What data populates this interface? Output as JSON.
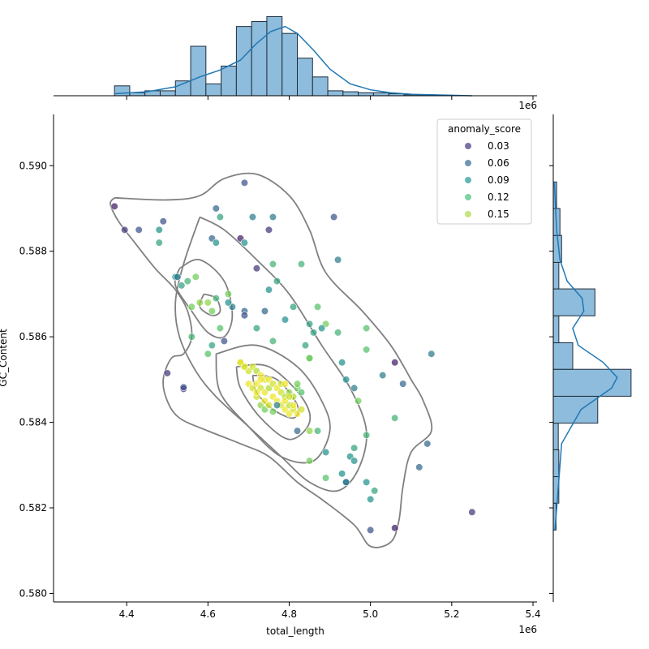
{
  "chart_data": {
    "type": "scatter",
    "xlabel": "total_length",
    "ylabel": "GC_Content",
    "x_scale_label": "1e6",
    "x_ticks": [
      4.4,
      4.6,
      4.8,
      5.0,
      5.2,
      5.4
    ],
    "y_ticks": [
      0.58,
      0.582,
      0.584,
      0.586,
      0.588,
      0.59
    ],
    "xlim": [
      4.22,
      5.41
    ],
    "ylim": [
      0.5798,
      0.5912
    ],
    "legend": {
      "title": "anomaly_score",
      "placement": "top-right",
      "entries": [
        {
          "label": "0.03",
          "color": "#5a4c8e"
        },
        {
          "label": "0.06",
          "color": "#4a7aa0"
        },
        {
          "label": "0.09",
          "color": "#3aa5a0"
        },
        {
          "label": "0.12",
          "color": "#5cc88a"
        },
        {
          "label": "0.15",
          "color": "#b5e05c"
        }
      ]
    },
    "colors": {
      "hist_fill": "#8ebcdc",
      "hist_edge": "#1f2d3d",
      "kde_line": "#1f77b4",
      "contour": "#808080"
    },
    "points": [
      [
        4.37,
        0.58905,
        0.03
      ],
      [
        4.395,
        0.5885,
        0.04
      ],
      [
        4.43,
        0.5885,
        0.05
      ],
      [
        4.49,
        0.5887,
        0.05
      ],
      [
        4.48,
        0.5885,
        0.08
      ],
      [
        4.48,
        0.5882,
        0.09
      ],
      [
        4.52,
        0.5874,
        0.08
      ],
      [
        4.525,
        0.5874,
        0.07
      ],
      [
        4.535,
        0.5872,
        0.09
      ],
      [
        4.55,
        0.5873,
        0.1
      ],
      [
        4.57,
        0.5874,
        0.12
      ],
      [
        4.58,
        0.5868,
        0.13
      ],
      [
        4.56,
        0.5867,
        0.12
      ],
      [
        4.6,
        0.5868,
        0.13
      ],
      [
        4.61,
        0.5866,
        0.12
      ],
      [
        4.62,
        0.5869,
        0.1
      ],
      [
        4.63,
        0.5862,
        0.11
      ],
      [
        4.64,
        0.5859,
        0.05
      ],
      [
        4.6,
        0.5856,
        0.11
      ],
      [
        4.56,
        0.586,
        0.1
      ],
      [
        4.61,
        0.5858,
        0.09
      ],
      [
        4.5,
        0.58515,
        0.04
      ],
      [
        4.54,
        0.58478,
        0.04
      ],
      [
        4.54,
        0.58482,
        0.05
      ],
      [
        4.62,
        0.589,
        0.06
      ],
      [
        4.61,
        0.5883,
        0.06
      ],
      [
        4.62,
        0.5882,
        0.08
      ],
      [
        4.63,
        0.5888,
        0.09
      ],
      [
        4.68,
        0.5883,
        0.03
      ],
      [
        4.69,
        0.5882,
        0.08
      ],
      [
        4.69,
        0.5896,
        0.05
      ],
      [
        4.71,
        0.5888,
        0.07
      ],
      [
        4.76,
        0.5888,
        0.07
      ],
      [
        4.75,
        0.5885,
        0.04
      ],
      [
        4.72,
        0.5876,
        0.04
      ],
      [
        4.76,
        0.5877,
        0.1
      ],
      [
        4.77,
        0.5873,
        0.09
      ],
      [
        4.75,
        0.5871,
        0.08
      ],
      [
        4.83,
        0.5877,
        0.1
      ],
      [
        4.91,
        0.5888,
        0.05
      ],
      [
        4.92,
        0.5878,
        0.07
      ],
      [
        4.65,
        0.587,
        0.12
      ],
      [
        4.66,
        0.5867,
        0.07
      ],
      [
        4.65,
        0.5868,
        0.08
      ],
      [
        4.69,
        0.5866,
        0.06
      ],
      [
        4.69,
        0.5865,
        0.05
      ],
      [
        4.74,
        0.5866,
        0.06
      ],
      [
        4.72,
        0.5862,
        0.09
      ],
      [
        4.79,
        0.5864,
        0.08
      ],
      [
        4.81,
        0.5867,
        0.09
      ],
      [
        4.85,
        0.5863,
        0.09
      ],
      [
        4.87,
        0.5867,
        0.11
      ],
      [
        4.89,
        0.5863,
        0.12
      ],
      [
        4.84,
        0.5858,
        0.09
      ],
      [
        4.86,
        0.5861,
        0.09
      ],
      [
        4.88,
        0.5862,
        0.08
      ],
      [
        4.92,
        0.5861,
        0.1
      ],
      [
        4.99,
        0.5862,
        0.11
      ],
      [
        4.99,
        0.5857,
        0.11
      ],
      [
        4.85,
        0.5855,
        0.11
      ],
      [
        4.85,
        0.5855,
        0.12
      ],
      [
        4.76,
        0.5859,
        0.1
      ],
      [
        5.06,
        0.5854,
        0.03
      ],
      [
        5.15,
        0.5856,
        0.07
      ],
      [
        5.03,
        0.5851,
        0.07
      ],
      [
        5.08,
        0.5849,
        0.06
      ],
      [
        4.94,
        0.585,
        0.08
      ],
      [
        4.93,
        0.5854,
        0.08
      ],
      [
        4.96,
        0.5848,
        0.07
      ],
      [
        4.97,
        0.5845,
        0.12
      ],
      [
        5.06,
        0.5841,
        0.1
      ],
      [
        4.82,
        0.5838,
        0.06
      ],
      [
        4.87,
        0.5838,
        0.1
      ],
      [
        4.85,
        0.5838,
        0.13
      ],
      [
        4.99,
        0.5837,
        0.1
      ],
      [
        5.14,
        0.5835,
        0.06
      ],
      [
        4.89,
        0.5833,
        0.08
      ],
      [
        4.96,
        0.5834,
        0.09
      ],
      [
        4.95,
        0.5832,
        0.08
      ],
      [
        4.96,
        0.5831,
        0.08
      ],
      [
        4.85,
        0.5831,
        0.12
      ],
      [
        4.89,
        0.5827,
        0.11
      ],
      [
        4.93,
        0.5828,
        0.08
      ],
      [
        4.94,
        0.5826,
        0.06
      ],
      [
        4.94,
        0.5826,
        0.07
      ],
      [
        4.99,
        0.5826,
        0.08
      ],
      [
        5.01,
        0.5824,
        0.09
      ],
      [
        5.12,
        0.58295,
        0.06
      ],
      [
        5.0,
        0.5822,
        0.08
      ],
      [
        5.25,
        0.5819,
        0.04
      ],
      [
        5.0,
        0.58148,
        0.05
      ],
      [
        5.06,
        0.58153,
        0.03
      ],
      [
        4.68,
        0.5854,
        0.14
      ],
      [
        4.69,
        0.5853,
        0.13
      ],
      [
        4.7,
        0.5852,
        0.15
      ],
      [
        4.71,
        0.5853,
        0.15
      ],
      [
        4.72,
        0.5852,
        0.14
      ],
      [
        4.73,
        0.5851,
        0.16
      ],
      [
        4.74,
        0.585,
        0.15
      ],
      [
        4.75,
        0.585,
        0.16
      ],
      [
        4.7,
        0.5849,
        0.16
      ],
      [
        4.71,
        0.5848,
        0.15
      ],
      [
        4.72,
        0.5849,
        0.16
      ],
      [
        4.73,
        0.5848,
        0.15
      ],
      [
        4.74,
        0.5847,
        0.16
      ],
      [
        4.75,
        0.5848,
        0.14
      ],
      [
        4.76,
        0.5849,
        0.15
      ],
      [
        4.77,
        0.5848,
        0.16
      ],
      [
        4.78,
        0.5847,
        0.15
      ],
      [
        4.79,
        0.5846,
        0.14
      ],
      [
        4.8,
        0.5847,
        0.13
      ],
      [
        4.81,
        0.5846,
        0.14
      ],
      [
        4.82,
        0.5848,
        0.12
      ],
      [
        4.83,
        0.5847,
        0.11
      ],
      [
        4.82,
        0.5849,
        0.12
      ],
      [
        4.76,
        0.5846,
        0.16
      ],
      [
        4.77,
        0.5845,
        0.16
      ],
      [
        4.78,
        0.5844,
        0.15
      ],
      [
        4.79,
        0.5843,
        0.16
      ],
      [
        4.8,
        0.5842,
        0.16
      ],
      [
        4.81,
        0.5843,
        0.15
      ],
      [
        4.82,
        0.5842,
        0.16
      ],
      [
        4.83,
        0.5843,
        0.15
      ],
      [
        4.8,
        0.5844,
        0.14
      ],
      [
        4.73,
        0.5844,
        0.13
      ],
      [
        4.74,
        0.5843,
        0.12
      ],
      [
        4.77,
        0.5844,
        0.07
      ],
      [
        4.76,
        0.58425,
        0.12
      ],
      [
        4.72,
        0.5846,
        0.15
      ],
      [
        4.74,
        0.5845,
        0.16
      ],
      [
        4.75,
        0.5844,
        0.15
      ],
      [
        4.79,
        0.5845,
        0.16
      ],
      [
        4.8,
        0.5846,
        0.15
      ],
      [
        4.73,
        0.585,
        0.16
      ],
      [
        4.78,
        0.5849,
        0.15
      ],
      [
        4.79,
        0.5849,
        0.16
      ],
      [
        4.72,
        0.5847,
        0.16
      ],
      [
        4.81,
        0.5844,
        0.16
      ],
      [
        4.69,
        0.5853,
        0.16
      ],
      [
        4.68,
        0.5854,
        0.16
      ]
    ],
    "top_hist": {
      "edges": [
        4.37,
        4.4075,
        4.445,
        4.4825,
        4.52,
        4.5575,
        4.595,
        4.6325,
        4.67,
        4.7075,
        4.745,
        4.7825,
        4.82,
        4.8575,
        4.895,
        4.9325,
        4.97,
        5.0075,
        5.045,
        5.0825,
        5.12,
        5.1575,
        5.195,
        5.2325,
        5.27
      ],
      "counts": [
        1,
        0.3,
        0.5,
        0.5,
        1.5,
        5,
        1.2,
        3,
        7,
        7.5,
        8,
        6.3,
        3.8,
        1.9,
        0.5,
        0.4,
        0.3,
        0.3,
        0.2,
        0.1,
        0.1,
        0,
        0,
        0
      ],
      "kde": [
        [
          4.37,
          0.2
        ],
        [
          4.45,
          0.4
        ],
        [
          4.52,
          0.9
        ],
        [
          4.58,
          1.9
        ],
        [
          4.63,
          2.6
        ],
        [
          4.68,
          3.6
        ],
        [
          4.72,
          5.3
        ],
        [
          4.755,
          6.5
        ],
        [
          4.79,
          7.0
        ],
        [
          4.82,
          6.3
        ],
        [
          4.86,
          4.6
        ],
        [
          4.9,
          2.7
        ],
        [
          4.95,
          1.2
        ],
        [
          5.0,
          0.6
        ],
        [
          5.05,
          0.3
        ],
        [
          5.1,
          0.15
        ],
        [
          5.2,
          0.05
        ],
        [
          5.25,
          0
        ]
      ]
    },
    "right_hist": {
      "edges": [
        0.58148,
        0.58211,
        0.58273,
        0.58336,
        0.58398,
        0.58461,
        0.58524,
        0.58586,
        0.58649,
        0.58712,
        0.58774,
        0.58837,
        0.589,
        0.58962
      ],
      "counts": [
        0.5,
        1,
        1,
        0.9,
        8,
        14,
        3.5,
        1,
        7.5,
        1,
        1.5,
        1.2,
        0.6
      ],
      "kde": [
        [
          0.58148,
          0.3
        ],
        [
          0.5823,
          0.8
        ],
        [
          0.5835,
          1.5
        ],
        [
          0.5843,
          5
        ],
        [
          0.5848,
          10.5
        ],
        [
          0.58505,
          11.5
        ],
        [
          0.5854,
          9
        ],
        [
          0.5858,
          4.5
        ],
        [
          0.5862,
          3.5
        ],
        [
          0.5866,
          5.5
        ],
        [
          0.5869,
          5.2
        ],
        [
          0.5873,
          2.5
        ],
        [
          0.5878,
          1.2
        ],
        [
          0.5885,
          0.6
        ],
        [
          0.5896,
          0.2
        ]
      ]
    },
    "contours": [
      [
        [
          4.37,
          0.58925
        ],
        [
          4.5,
          0.5892
        ],
        [
          4.58,
          0.5893
        ],
        [
          4.64,
          0.5897
        ],
        [
          4.72,
          0.5898
        ],
        [
          4.8,
          0.5893
        ],
        [
          4.85,
          0.5885
        ],
        [
          4.89,
          0.5875
        ],
        [
          4.98,
          0.5866
        ],
        [
          5.05,
          0.5858
        ],
        [
          5.1,
          0.585
        ],
        [
          5.13,
          0.5845
        ],
        [
          5.15,
          0.5838
        ],
        [
          5.1,
          0.5833
        ],
        [
          5.08,
          0.5825
        ],
        [
          5.07,
          0.5817
        ],
        [
          5.05,
          0.5812
        ],
        [
          5.0,
          0.5811
        ],
        [
          4.96,
          0.5816
        ],
        [
          4.88,
          0.5822
        ],
        [
          4.82,
          0.5826
        ],
        [
          4.75,
          0.5832
        ],
        [
          4.68,
          0.5835
        ],
        [
          4.6,
          0.5838
        ],
        [
          4.53,
          0.5841
        ],
        [
          4.5,
          0.5845
        ],
        [
          4.49,
          0.585
        ],
        [
          4.51,
          0.5855
        ],
        [
          4.54,
          0.5856
        ],
        [
          4.56,
          0.586
        ],
        [
          4.55,
          0.5866
        ],
        [
          4.52,
          0.5871
        ],
        [
          4.47,
          0.5876
        ],
        [
          4.42,
          0.5882
        ],
        [
          4.38,
          0.5887
        ],
        [
          4.36,
          0.5891
        ],
        [
          4.37,
          0.58925
        ]
      ],
      [
        [
          4.58,
          0.5888
        ],
        [
          4.64,
          0.5885
        ],
        [
          4.72,
          0.5878
        ],
        [
          4.8,
          0.587
        ],
        [
          4.88,
          0.5858
        ],
        [
          4.95,
          0.5848
        ],
        [
          4.99,
          0.5838
        ],
        [
          4.97,
          0.5829
        ],
        [
          4.92,
          0.5824
        ],
        [
          4.85,
          0.5826
        ],
        [
          4.78,
          0.5832
        ],
        [
          4.7,
          0.5839
        ],
        [
          4.62,
          0.5846
        ],
        [
          4.57,
          0.5852
        ],
        [
          4.53,
          0.586
        ],
        [
          4.52,
          0.5868
        ],
        [
          4.54,
          0.5877
        ],
        [
          4.58,
          0.5888
        ]
      ],
      [
        [
          4.53,
          0.5876
        ],
        [
          4.58,
          0.5878
        ],
        [
          4.64,
          0.5873
        ],
        [
          4.66,
          0.5865
        ],
        [
          4.64,
          0.586
        ],
        [
          4.6,
          0.5861
        ],
        [
          4.56,
          0.5866
        ],
        [
          4.52,
          0.5872
        ],
        [
          4.53,
          0.5876
        ]
      ],
      [
        [
          4.59,
          0.587
        ],
        [
          4.62,
          0.5869
        ],
        [
          4.63,
          0.5866
        ],
        [
          4.61,
          0.5865
        ],
        [
          4.58,
          0.5867
        ],
        [
          4.59,
          0.587
        ]
      ],
      [
        [
          4.62,
          0.5856
        ],
        [
          4.72,
          0.5858
        ],
        [
          4.82,
          0.5853
        ],
        [
          4.88,
          0.5845
        ],
        [
          4.9,
          0.5838
        ],
        [
          4.86,
          0.5831
        ],
        [
          4.78,
          0.5832
        ],
        [
          4.7,
          0.5839
        ],
        [
          4.63,
          0.5847
        ],
        [
          4.62,
          0.5856
        ]
      ],
      [
        [
          4.67,
          0.5853
        ],
        [
          4.75,
          0.5853
        ],
        [
          4.83,
          0.5846
        ],
        [
          4.85,
          0.584
        ],
        [
          4.8,
          0.5836
        ],
        [
          4.73,
          0.5841
        ],
        [
          4.68,
          0.5848
        ],
        [
          4.67,
          0.5853
        ]
      ],
      [
        [
          4.71,
          0.5851
        ],
        [
          4.77,
          0.585
        ],
        [
          4.82,
          0.5844
        ],
        [
          4.81,
          0.5841
        ],
        [
          4.76,
          0.5843
        ],
        [
          4.72,
          0.5847
        ],
        [
          4.71,
          0.5851
        ]
      ]
    ]
  }
}
